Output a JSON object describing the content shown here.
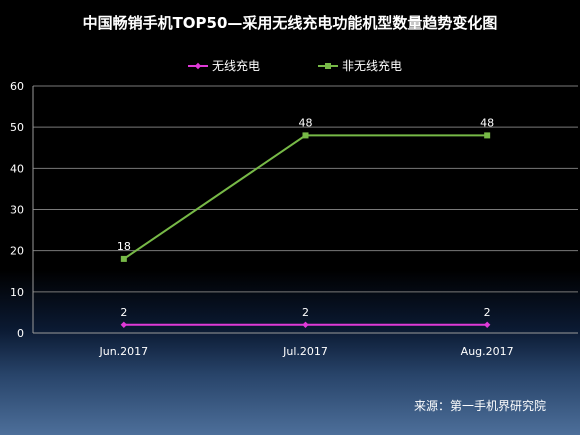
{
  "chart_data": {
    "type": "line",
    "title": "中国畅销手机TOP50—采用无线充电功能机型数量趋势变化图",
    "categories": [
      "Jun.2017",
      "Jul.2017",
      "Aug.2017"
    ],
    "ylim": [
      0,
      60
    ],
    "yticks": [
      0,
      10,
      20,
      30,
      40,
      50,
      60
    ],
    "grid": true,
    "legend": "top-center",
    "series": [
      {
        "name": "无线充电",
        "values": [
          2,
          2,
          2
        ],
        "color": "#e03ad8",
        "marker": "diamond"
      },
      {
        "name": "非无线充电",
        "values": [
          18,
          48,
          48
        ],
        "color": "#77b947",
        "marker": "square"
      }
    ]
  },
  "source": "来源：第一手机界研究院"
}
